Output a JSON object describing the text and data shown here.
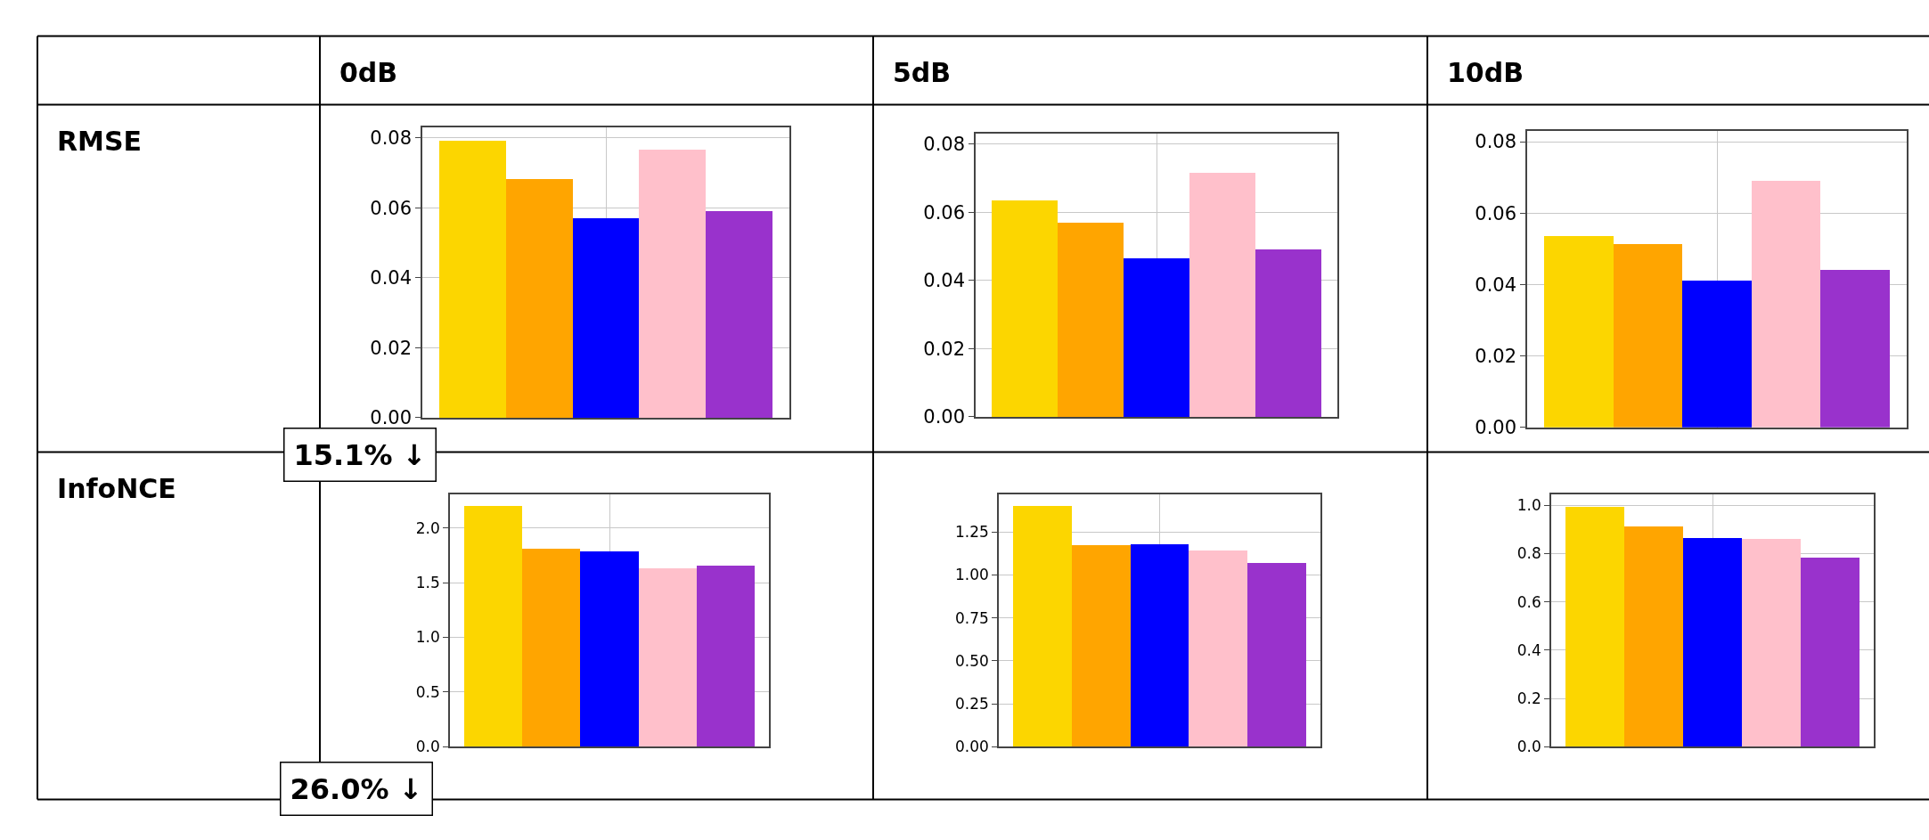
{
  "chart_data": [
    {
      "type": "other",
      "annotations": [
        "0dB",
        "5dB",
        "10dB",
        "RMSE",
        "InfoNCE"
      ]
    },
    {
      "type": "bar",
      "categories": [
        null,
        null,
        null,
        null,
        null
      ],
      "values": [
        0.0791,
        0.0681,
        0.0571,
        0.0767,
        0.059
      ],
      "colors": [
        "#fcd600",
        "#ffa500",
        "#0000ff",
        "#ffc0cb",
        "#9932cc"
      ],
      "ylim": [
        0,
        0.083
      ],
      "yticks": [
        {
          "value": 0,
          "label": "0.00"
        },
        0.02,
        0.04,
        0.06,
        0.08
      ],
      "grid": true,
      "tick_labels": "y",
      "annotations": [
        "15.1% ↓"
      ]
    },
    {
      "type": "bar",
      "categories": [
        null,
        null,
        null,
        null,
        null
      ],
      "values": [
        0.0633,
        0.0569,
        0.0464,
        0.0716,
        0.0491
      ],
      "colors": [
        "#fcd600",
        "#ffa500",
        "#0000ff",
        "#ffc0cb",
        "#9932cc"
      ],
      "ylim": [
        0,
        0.083
      ],
      "yticks": [
        {
          "value": 0,
          "label": "0.00"
        },
        0.02,
        0.04,
        0.06,
        0.08
      ],
      "grid": true,
      "tick_labels": "y"
    },
    {
      "type": "bar",
      "categories": [
        null,
        null,
        null,
        null,
        null
      ],
      "values": [
        0.0535,
        0.0514,
        0.0411,
        0.0691,
        0.0441
      ],
      "colors": [
        "#fcd600",
        "#ffa500",
        "#0000ff",
        "#ffc0cb",
        "#9932cc"
      ],
      "ylim": [
        0,
        0.083
      ],
      "yticks": [
        {
          "value": 0,
          "label": "0.00"
        },
        0.02,
        0.04,
        0.06,
        0.08
      ],
      "grid": true,
      "tick_labels": "y"
    },
    {
      "type": "bar",
      "categories": [
        null,
        null,
        null,
        null,
        null
      ],
      "values": [
        2.2,
        1.81,
        1.79,
        1.63,
        1.66
      ],
      "colors": [
        "#fcd600",
        "#ffa500",
        "#0000ff",
        "#ffc0cb",
        "#9932cc"
      ],
      "ylim": [
        0,
        2.31
      ],
      "yticks": [
        {
          "value": 0,
          "label": "0.0"
        },
        0.5,
        {
          "value": 1,
          "label": "1.0"
        },
        1.5,
        {
          "value": 2,
          "label": "2.0"
        }
      ],
      "grid": true,
      "tick_labels": "y",
      "annotations": [
        "26.0% ↓"
      ]
    },
    {
      "type": "bar",
      "categories": [
        null,
        null,
        null,
        null,
        null
      ],
      "values": [
        1.4,
        1.173,
        1.178,
        1.143,
        1.068
      ],
      "colors": [
        "#fcd600",
        "#ffa500",
        "#0000ff",
        "#ffc0cb",
        "#9932cc"
      ],
      "ylim": [
        0,
        1.47
      ],
      "yticks": [
        {
          "value": 0,
          "label": "0.00"
        },
        0.25,
        {
          "value": 0.5,
          "label": "0.50"
        },
        0.75,
        {
          "value": 1,
          "label": "1.00"
        },
        1.25
      ],
      "grid": true,
      "tick_labels": "y"
    },
    {
      "type": "bar",
      "categories": [
        null,
        null,
        null,
        null,
        null
      ],
      "values": [
        0.996,
        0.913,
        0.864,
        0.861,
        0.783
      ],
      "colors": [
        "#fcd600",
        "#ffa500",
        "#0000ff",
        "#ffc0cb",
        "#9932cc"
      ],
      "ylim": [
        0,
        1.046
      ],
      "yticks": [
        {
          "value": 0,
          "label": "0.0"
        },
        0.2,
        0.4,
        0.6,
        0.8,
        {
          "value": 1,
          "label": "1.0"
        }
      ],
      "grid": true,
      "tick_labels": "y"
    }
  ]
}
